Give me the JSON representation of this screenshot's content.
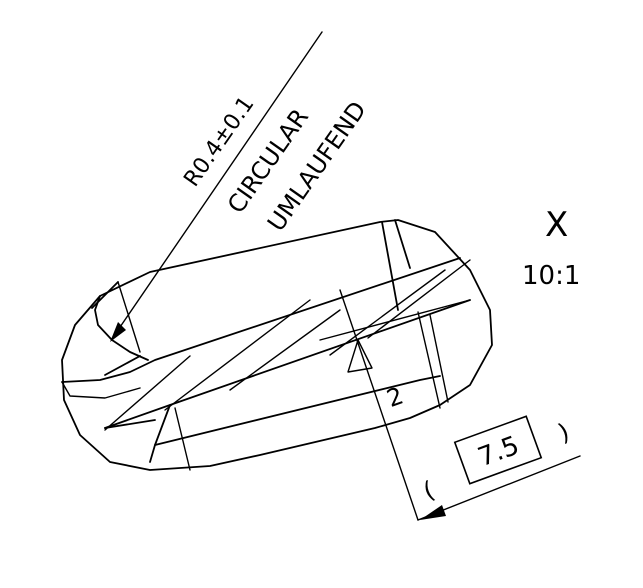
{
  "annotation": {
    "radius_note": "R0.4±0.1",
    "english_note": "CIRCULAR",
    "german_note": "UMLAUFEND"
  },
  "detail_view": {
    "letter": "X",
    "scale": "10:1"
  },
  "dimensions": {
    "small_dim": "2",
    "basic_dim": "7.5",
    "paren_open": "(",
    "paren_close": ")"
  }
}
